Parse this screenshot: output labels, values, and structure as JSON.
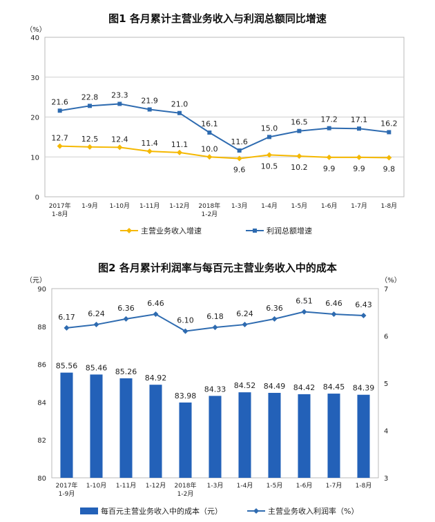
{
  "chart_data": [
    {
      "type": "line",
      "title": "图1  各月累计主营业务收入与利润总额同比增速",
      "unit": "（%）",
      "categories": [
        [
          "2017年",
          "1-8月"
        ],
        [
          "1-9月"
        ],
        [
          "1-10月"
        ],
        [
          "1-11月"
        ],
        [
          "1-12月"
        ],
        [
          "2018年",
          "1-2月"
        ],
        [
          "1-3月"
        ],
        [
          "1-4月"
        ],
        [
          "1-5月"
        ],
        [
          "1-6月"
        ],
        [
          "1-7月"
        ],
        [
          "1-8月"
        ]
      ],
      "ylim": [
        0,
        40
      ],
      "yticks": [
        0,
        10,
        20,
        30,
        40
      ],
      "series": [
        {
          "name": "主营业务收入增速",
          "color": "#f5b800",
          "marker": "diamond",
          "values": [
            12.7,
            12.5,
            12.4,
            11.4,
            11.1,
            10.0,
            9.6,
            10.5,
            10.2,
            9.9,
            9.9,
            9.8
          ],
          "labels": [
            "12.7",
            "12.5",
            "12.4",
            "11.4",
            "11.1",
            "10.0",
            "9.6",
            "10.5",
            "10.2",
            "9.9",
            "9.9",
            "9.8"
          ]
        },
        {
          "name": "利润总额增速",
          "color": "#2e6bb0",
          "marker": "square",
          "values": [
            21.6,
            22.8,
            23.3,
            21.9,
            21.0,
            16.1,
            11.6,
            15.0,
            16.5,
            17.2,
            17.1,
            16.2
          ],
          "labels": [
            "21.6",
            "22.8",
            "23.3",
            "21.9",
            "21.0",
            "16.1",
            "11.6",
            "15.0",
            "16.5",
            "17.2",
            "17.1",
            "16.2"
          ]
        }
      ],
      "grid": "horizontal",
      "legend": "bottom"
    },
    {
      "type": "bar+line",
      "title": "图2  各月累计利润率与每百元主营业务收入中的成本",
      "left_unit": "（元）",
      "right_unit": "（%）",
      "categories": [
        [
          "2017年",
          "1-9月"
        ],
        [
          "1-10月"
        ],
        [
          "1-11月"
        ],
        [
          "1-12月"
        ],
        [
          "2018年",
          "1-2月"
        ],
        [
          "1-3月"
        ],
        [
          "1-4月"
        ],
        [
          "1-5月"
        ],
        [
          "1-6月"
        ],
        [
          "1-7月"
        ],
        [
          "1-8月"
        ]
      ],
      "ylim_left": [
        80,
        90
      ],
      "yticks_left": [
        80,
        82,
        84,
        86,
        88,
        90
      ],
      "ylim_right": [
        3,
        7
      ],
      "yticks_right": [
        3,
        4,
        5,
        6,
        7
      ],
      "bars": {
        "name": "每百元主营业务收入中的成本（元）",
        "color": "#2361b8",
        "values": [
          85.56,
          85.46,
          85.26,
          84.92,
          83.98,
          84.33,
          84.52,
          84.49,
          84.42,
          84.45,
          84.39
        ],
        "labels": [
          "85.56",
          "85.46",
          "85.26",
          "84.92",
          "83.98",
          "84.33",
          "84.52",
          "84.49",
          "84.42",
          "84.45",
          "84.39"
        ]
      },
      "line": {
        "name": "主营业务收入利润率（%）",
        "color": "#2e6bb0",
        "marker": "diamond",
        "values": [
          6.17,
          6.24,
          6.36,
          6.46,
          6.1,
          6.18,
          6.24,
          6.36,
          6.51,
          6.46,
          6.43
        ],
        "labels": [
          "6.17",
          "6.24",
          "6.36",
          "6.46",
          "6.10",
          "6.18",
          "6.24",
          "6.36",
          "6.51",
          "6.46",
          "6.43"
        ]
      },
      "grid": "none",
      "legend": "bottom"
    }
  ]
}
